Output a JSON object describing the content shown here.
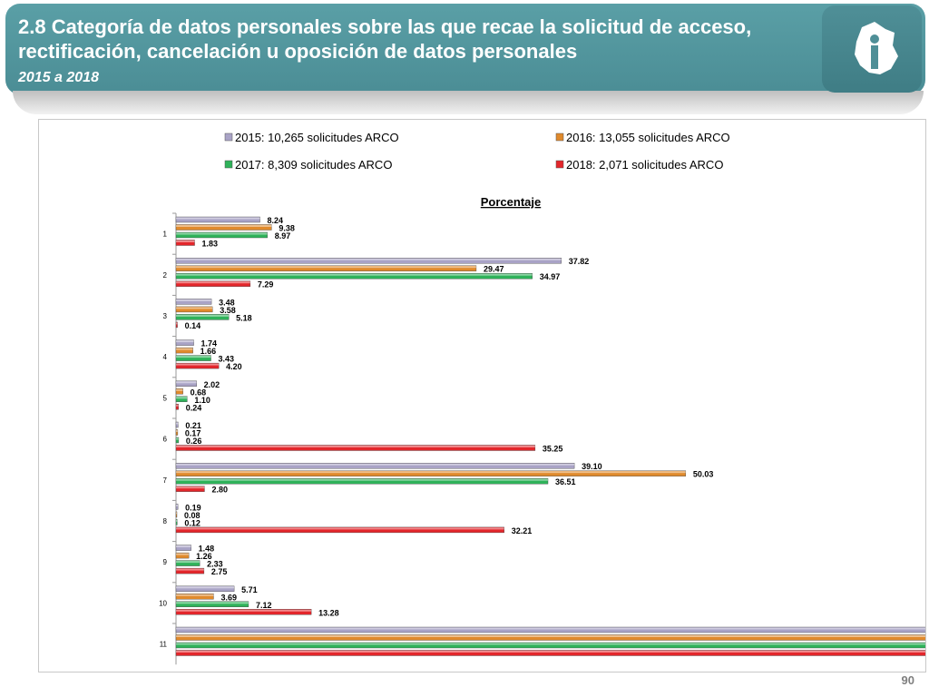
{
  "slide": {
    "title": "2.8 Categoría de datos personales sobre las que recae la solicitud de acceso, rectificación, cancelación u oposición de datos personales",
    "subtitle": "2015 a 2018",
    "page_number": "90",
    "header_color": "#4f959d"
  },
  "chart_data": {
    "type": "bar",
    "orientation": "horizontal",
    "title": "Porcentaje",
    "categories": [
      "1",
      "2",
      "3",
      "4",
      "5",
      "6",
      "7",
      "8",
      "9",
      "10",
      "11"
    ],
    "series": [
      {
        "name": "2015: 10,265 solicitudes ARCO",
        "color": "#a9a3c6",
        "values": [
          8.24,
          37.82,
          3.48,
          1.74,
          2.02,
          0.21,
          39.1,
          0.19,
          1.48,
          5.71,
          null
        ],
        "labels": [
          "8.24",
          "37.82",
          "3.48",
          "1.74",
          "2.02",
          "0.21",
          "39.10",
          "0.19",
          "1.48",
          "5.71",
          null
        ]
      },
      {
        "name": "2016: 13,055 solicitudes ARCO",
        "color": "#e08a2c",
        "values": [
          9.38,
          29.47,
          3.58,
          1.66,
          0.68,
          0.17,
          50.03,
          0.08,
          1.26,
          3.69,
          null
        ],
        "labels": [
          "9.38",
          "29.47",
          "3.58",
          "1.66",
          "0.68",
          "0.17",
          "50.03",
          "0.08",
          "1.26",
          "3.69",
          null
        ]
      },
      {
        "name": "2017: 8,309 solicitudes ARCO",
        "color": "#2fb25a",
        "values": [
          8.97,
          34.97,
          5.18,
          3.43,
          1.1,
          0.26,
          36.51,
          0.12,
          2.33,
          7.12,
          null
        ],
        "labels": [
          "8.97",
          "34.97",
          "5.18",
          "3.43",
          "1.10",
          "0.26",
          "36.51",
          "0.12",
          "2.33",
          "7.12",
          null
        ]
      },
      {
        "name": "2018: 2,071 solicitudes ARCO",
        "color": "#e3262b",
        "values": [
          1.83,
          7.29,
          0.14,
          4.2,
          0.24,
          35.25,
          2.8,
          32.21,
          2.75,
          13.28,
          null
        ],
        "labels": [
          "1.83",
          "7.29",
          "0.14",
          "4.20",
          "0.24",
          "35.25",
          "2.80",
          "32.21",
          "2.75",
          "13.28",
          null
        ]
      }
    ],
    "clipped_categories": [
      "11"
    ],
    "legend_position": "top",
    "grid": false
  }
}
